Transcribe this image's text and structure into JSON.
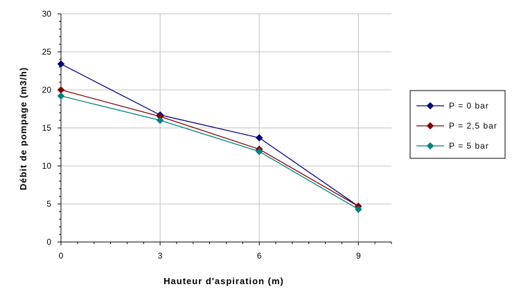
{
  "chart_data": {
    "type": "line",
    "title": "",
    "xlabel": "Hauteur d'aspiration (m)",
    "ylabel": "Débit de pompage (m3/h)",
    "x": [
      0,
      3,
      6,
      9
    ],
    "x_tick_labels": [
      "0",
      "3",
      "6",
      "9"
    ],
    "y_tick_labels": [
      "0",
      "5",
      "10",
      "15",
      "20",
      "25",
      "30"
    ],
    "xlim": [
      0,
      10
    ],
    "ylim": [
      0,
      30
    ],
    "x_ticks": [
      0,
      3,
      6,
      9
    ],
    "y_ticks": [
      0,
      5,
      10,
      15,
      20,
      25,
      30
    ],
    "grid": true,
    "legend_position": "right",
    "series": [
      {
        "name": "P = 0 bar",
        "color": "#000080",
        "values": [
          23.4,
          16.7,
          13.7,
          4.7
        ]
      },
      {
        "name": "P = 2,5 bar",
        "color": "#800000",
        "values": [
          20.0,
          16.5,
          12.2,
          4.7
        ]
      },
      {
        "name": "P = 5 bar",
        "color": "#008080",
        "values": [
          19.2,
          16.0,
          11.9,
          4.3
        ]
      }
    ]
  }
}
